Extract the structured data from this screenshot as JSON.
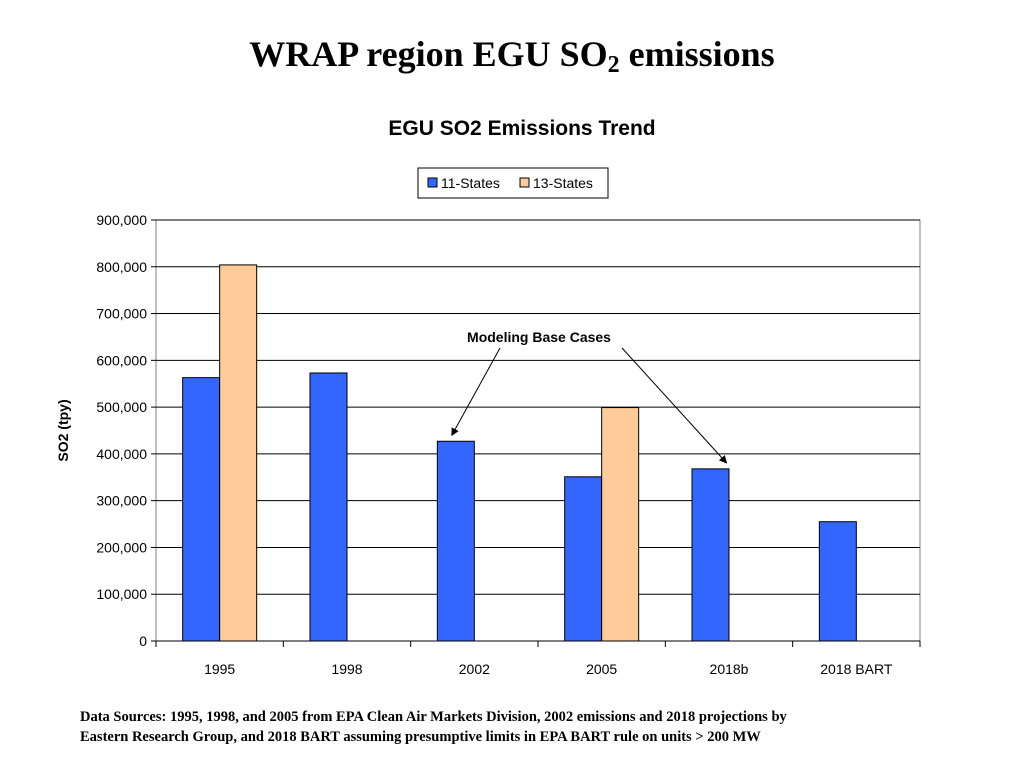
{
  "slide": {
    "title_main": "WRAP region EGU SO",
    "title_sub": "2",
    "title_tail": " emissions",
    "sources_line1": "Data Sources: 1995, 1998, and 2005 from EPA Clean Air Markets Division, 2002 emissions and 2018 projections by",
    "sources_line2": "Eastern Research Group, and 2018 BART assuming presumptive limits in EPA BART rule on units > 200 MW"
  },
  "chart_data": {
    "type": "bar",
    "title": "EGU SO2 Emissions Trend",
    "xlabel": "",
    "ylabel": "SO2 (tpy)",
    "categories": [
      "1995",
      "1998",
      "2002",
      "2005",
      "2018b",
      "2018 BART"
    ],
    "series": [
      {
        "name": "11-States",
        "color": "#3366ff",
        "values": [
          563000,
          573000,
          427000,
          351000,
          368000,
          255000
        ]
      },
      {
        "name": "13-States",
        "color": "#ffcc99",
        "values": [
          804000,
          null,
          null,
          499000,
          null,
          null
        ]
      }
    ],
    "ylim": [
      0,
      900000
    ],
    "yticks": [
      0,
      100000,
      200000,
      300000,
      400000,
      500000,
      600000,
      700000,
      800000,
      900000
    ],
    "ytick_labels": [
      "0",
      "100,000",
      "200,000",
      "300,000",
      "400,000",
      "500,000",
      "600,000",
      "700,000",
      "800,000",
      "900,000"
    ],
    "grid": true,
    "legend_position": "top-center",
    "annotation": {
      "text": "Modeling Base Cases",
      "targets": [
        {
          "category": "2002",
          "value": 427000
        },
        {
          "category": "2018b",
          "value": 368000
        }
      ]
    }
  }
}
